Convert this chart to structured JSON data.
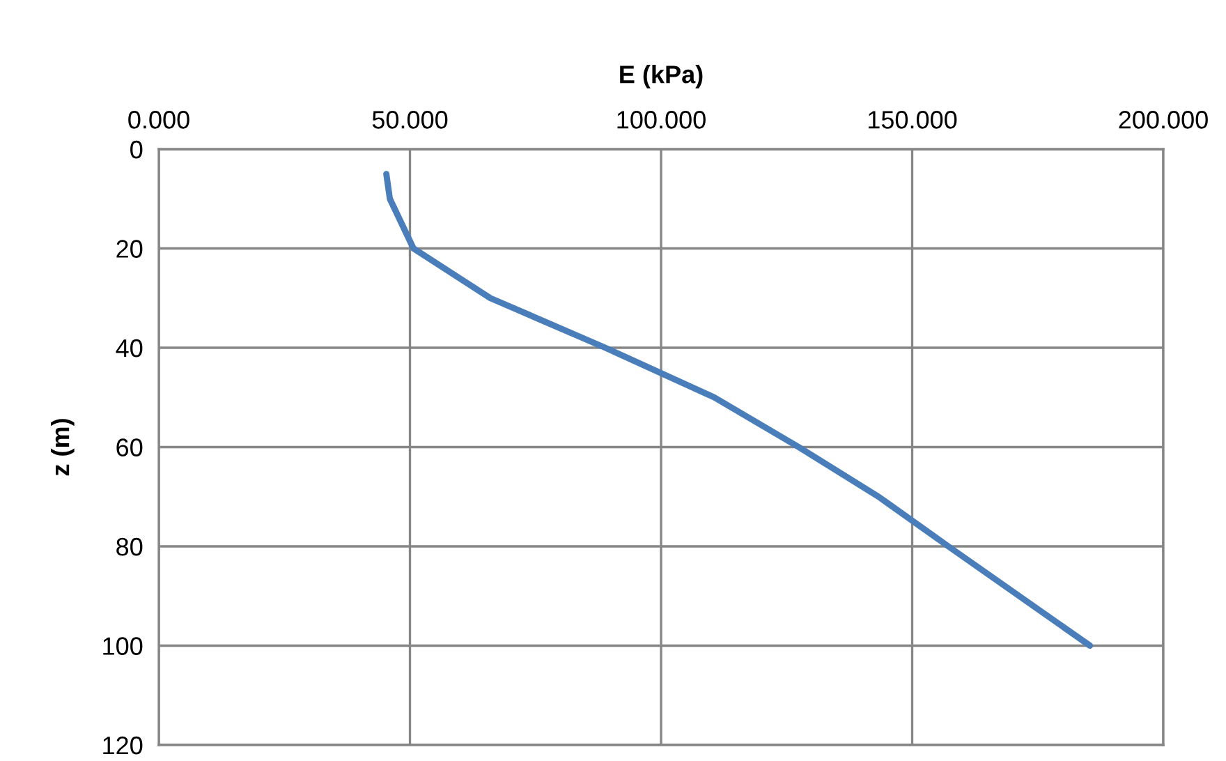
{
  "chart_data": {
    "type": "line",
    "xlabel": "E (kPa)",
    "ylabel": "z (m)",
    "xlim": [
      0,
      200
    ],
    "xticks": [
      {
        "value": 0,
        "label": "0.000"
      },
      {
        "value": 50,
        "label": "50.000"
      },
      {
        "value": 100,
        "label": "100.000"
      },
      {
        "value": 150,
        "label": "150.000"
      },
      {
        "value": 200,
        "label": "200.000"
      }
    ],
    "ylim": [
      120,
      0
    ],
    "yticks": [
      0,
      20,
      40,
      60,
      80,
      100,
      120
    ],
    "grid": true,
    "series": [
      {
        "color": "#4a7ebb",
        "x": [
          45.3,
          46.0,
          50.7,
          66,
          88.9,
          110.6,
          127.4,
          143.3,
          157.2,
          185.4
        ],
        "values": [
          5,
          10,
          20,
          30,
          40,
          50,
          60,
          70,
          80,
          100
        ]
      }
    ]
  }
}
